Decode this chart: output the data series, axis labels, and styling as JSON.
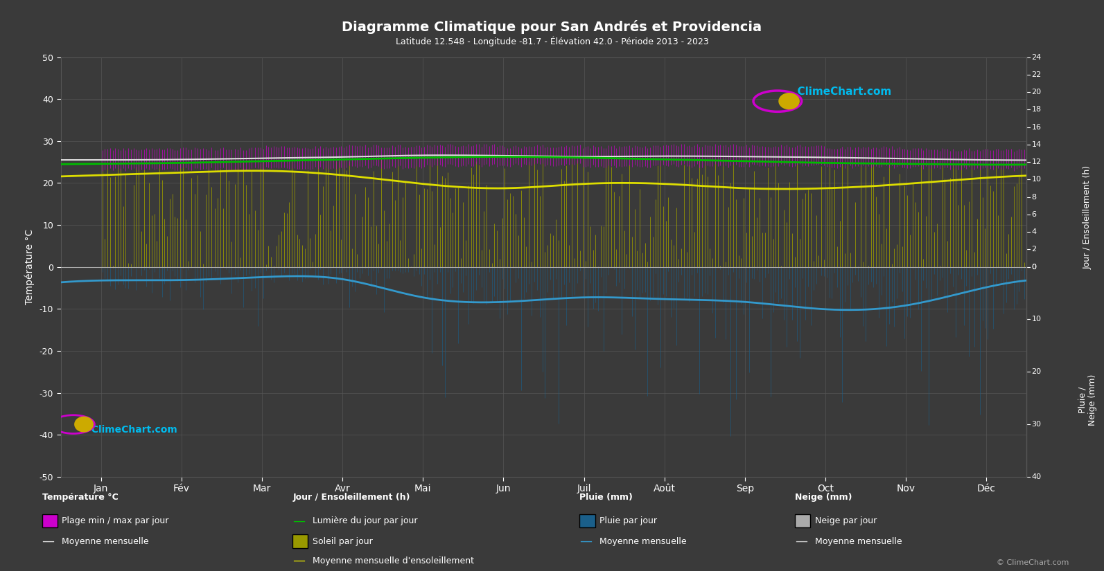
{
  "title": "Diagramme Climatique pour San Andrés et Providencia",
  "subtitle": "Latitude 12.548 - Longitude -81.7 - Élévation 42.0 - Période 2013 - 2023",
  "background_color": "#3a3a3a",
  "text_color": "#ffffff",
  "grid_color": "#555555",
  "months": [
    "Jan",
    "Fév",
    "Mar",
    "Avr",
    "Mai",
    "Jun",
    "Juil",
    "Août",
    "Sep",
    "Oct",
    "Nov",
    "Déc"
  ],
  "temp_ylim": [
    -50,
    50
  ],
  "temp_min_monthly": [
    23.2,
    23.3,
    23.5,
    23.8,
    24.2,
    24.3,
    24.0,
    24.1,
    24.2,
    23.9,
    23.6,
    23.3
  ],
  "temp_max_monthly": [
    28.0,
    28.2,
    28.5,
    28.8,
    29.0,
    28.7,
    28.7,
    29.0,
    28.8,
    28.4,
    28.0,
    27.8
  ],
  "temp_mean_monthly": [
    25.5,
    25.6,
    25.9,
    26.2,
    26.6,
    26.5,
    26.3,
    26.4,
    26.3,
    26.1,
    25.8,
    25.5
  ],
  "daylight_monthly": [
    11.8,
    11.9,
    12.1,
    12.3,
    12.5,
    12.6,
    12.5,
    12.3,
    12.1,
    11.9,
    11.8,
    11.7
  ],
  "sunshine_monthly": [
    10.5,
    10.8,
    11.0,
    10.5,
    9.5,
    9.0,
    9.5,
    9.5,
    9.0,
    9.0,
    9.5,
    10.2
  ],
  "rain_monthly_mm": [
    80,
    70,
    60,
    70,
    180,
    200,
    180,
    190,
    200,
    250,
    220,
    120
  ],
  "days_per_month": [
    31,
    28,
    31,
    30,
    31,
    30,
    31,
    31,
    30,
    31,
    30,
    31
  ],
  "temp_color_magenta": "#cc00cc",
  "temp_mean_color": "#dddddd",
  "daylight_color": "#00bb00",
  "sunshine_fill_color": "#999900",
  "sunshine_mean_color": "#dddd00",
  "rain_fill_color": "#1a5f8a",
  "rain_mean_color": "#3399cc",
  "snow_fill_color": "#aaaaaa",
  "snow_mean_color": "#cccccc",
  "climechart_color": "#00bbee",
  "sun_scale_max": 24,
  "rain_scale_max": 40
}
